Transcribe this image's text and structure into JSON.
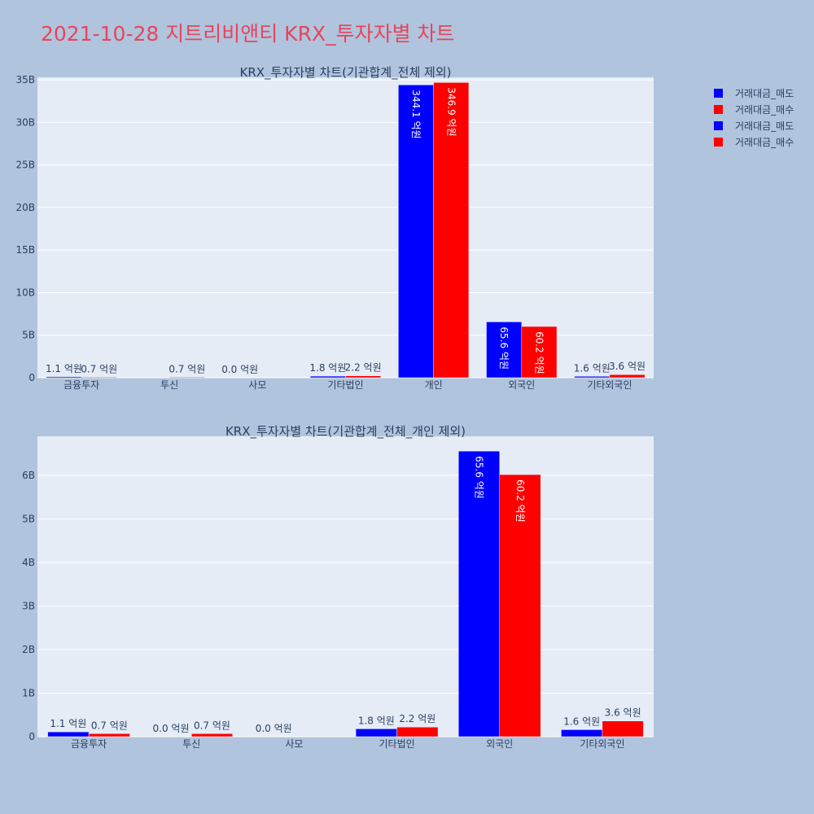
{
  "title": "2021-10-28 지트리비앤티 KRX_투자자별 차트",
  "legend": [
    {
      "label": "거래대금_매도",
      "color": "#0000ff"
    },
    {
      "label": "거래대금_매수",
      "color": "#ff0000"
    },
    {
      "label": "거래대금_매도",
      "color": "#0000ff"
    },
    {
      "label": "거래대금_매수",
      "color": "#ff0000"
    }
  ],
  "chart_data": [
    {
      "type": "bar",
      "title": "KRX_투자자별 차트(기관합계_전체 제외)",
      "categories": [
        "금융투자",
        "투신",
        "사모",
        "기타법인",
        "개인",
        "외국인",
        "기타외국인"
      ],
      "series": [
        {
          "name": "거래대금_매도",
          "color": "#0000ff",
          "values": [
            0.11,
            0.0,
            0.0,
            0.18,
            34.41,
            6.56,
            0.16
          ],
          "labels": [
            "1.1 억원",
            "",
            "0.0 억원",
            "1.8 억원",
            "344.1 억원",
            "65.6 억원",
            "1.6 억원"
          ]
        },
        {
          "name": "거래대금_매수",
          "color": "#ff0000",
          "values": [
            0.07,
            0.07,
            0.0,
            0.22,
            34.69,
            6.02,
            0.36
          ],
          "labels": [
            "0.7 억원",
            "0.7 억원",
            "",
            "2.2 억원",
            "346.9 억원",
            "60.2 억원",
            "3.6 억원"
          ]
        }
      ],
      "yticks": [
        0,
        5,
        10,
        15,
        20,
        25,
        30,
        35
      ],
      "ytick_labels": [
        "0",
        "5B",
        "10B",
        "15B",
        "20B",
        "25B",
        "30B",
        "35B"
      ],
      "ylim": [
        0,
        35.3
      ],
      "grid": true
    },
    {
      "type": "bar",
      "title": "KRX_투자자별 차트(기관합계_전체_개인 제외)",
      "categories": [
        "금융투자",
        "투신",
        "사모",
        "기타법인",
        "외국인",
        "기타외국인"
      ],
      "series": [
        {
          "name": "거래대금_매도",
          "color": "#0000ff",
          "values": [
            0.11,
            0.0,
            0.0,
            0.18,
            6.56,
            0.16
          ],
          "labels": [
            "1.1 억원",
            "0.0 억원",
            "0.0 억원",
            "1.8 억원",
            "65.6 억원",
            "1.6 억원"
          ]
        },
        {
          "name": "거래대금_매수",
          "color": "#ff0000",
          "values": [
            0.07,
            0.07,
            0.0,
            0.22,
            6.02,
            0.36
          ],
          "labels": [
            "0.7 억원",
            "0.7 억원",
            "",
            "2.2 억원",
            "60.2 억원",
            "3.6 억원"
          ]
        }
      ],
      "yticks": [
        0,
        1,
        2,
        3,
        4,
        5,
        6
      ],
      "ytick_labels": [
        "0",
        "1B",
        "2B",
        "3B",
        "4B",
        "5B",
        "6B"
      ],
      "ylim": [
        0,
        6.9
      ],
      "grid": true
    }
  ]
}
